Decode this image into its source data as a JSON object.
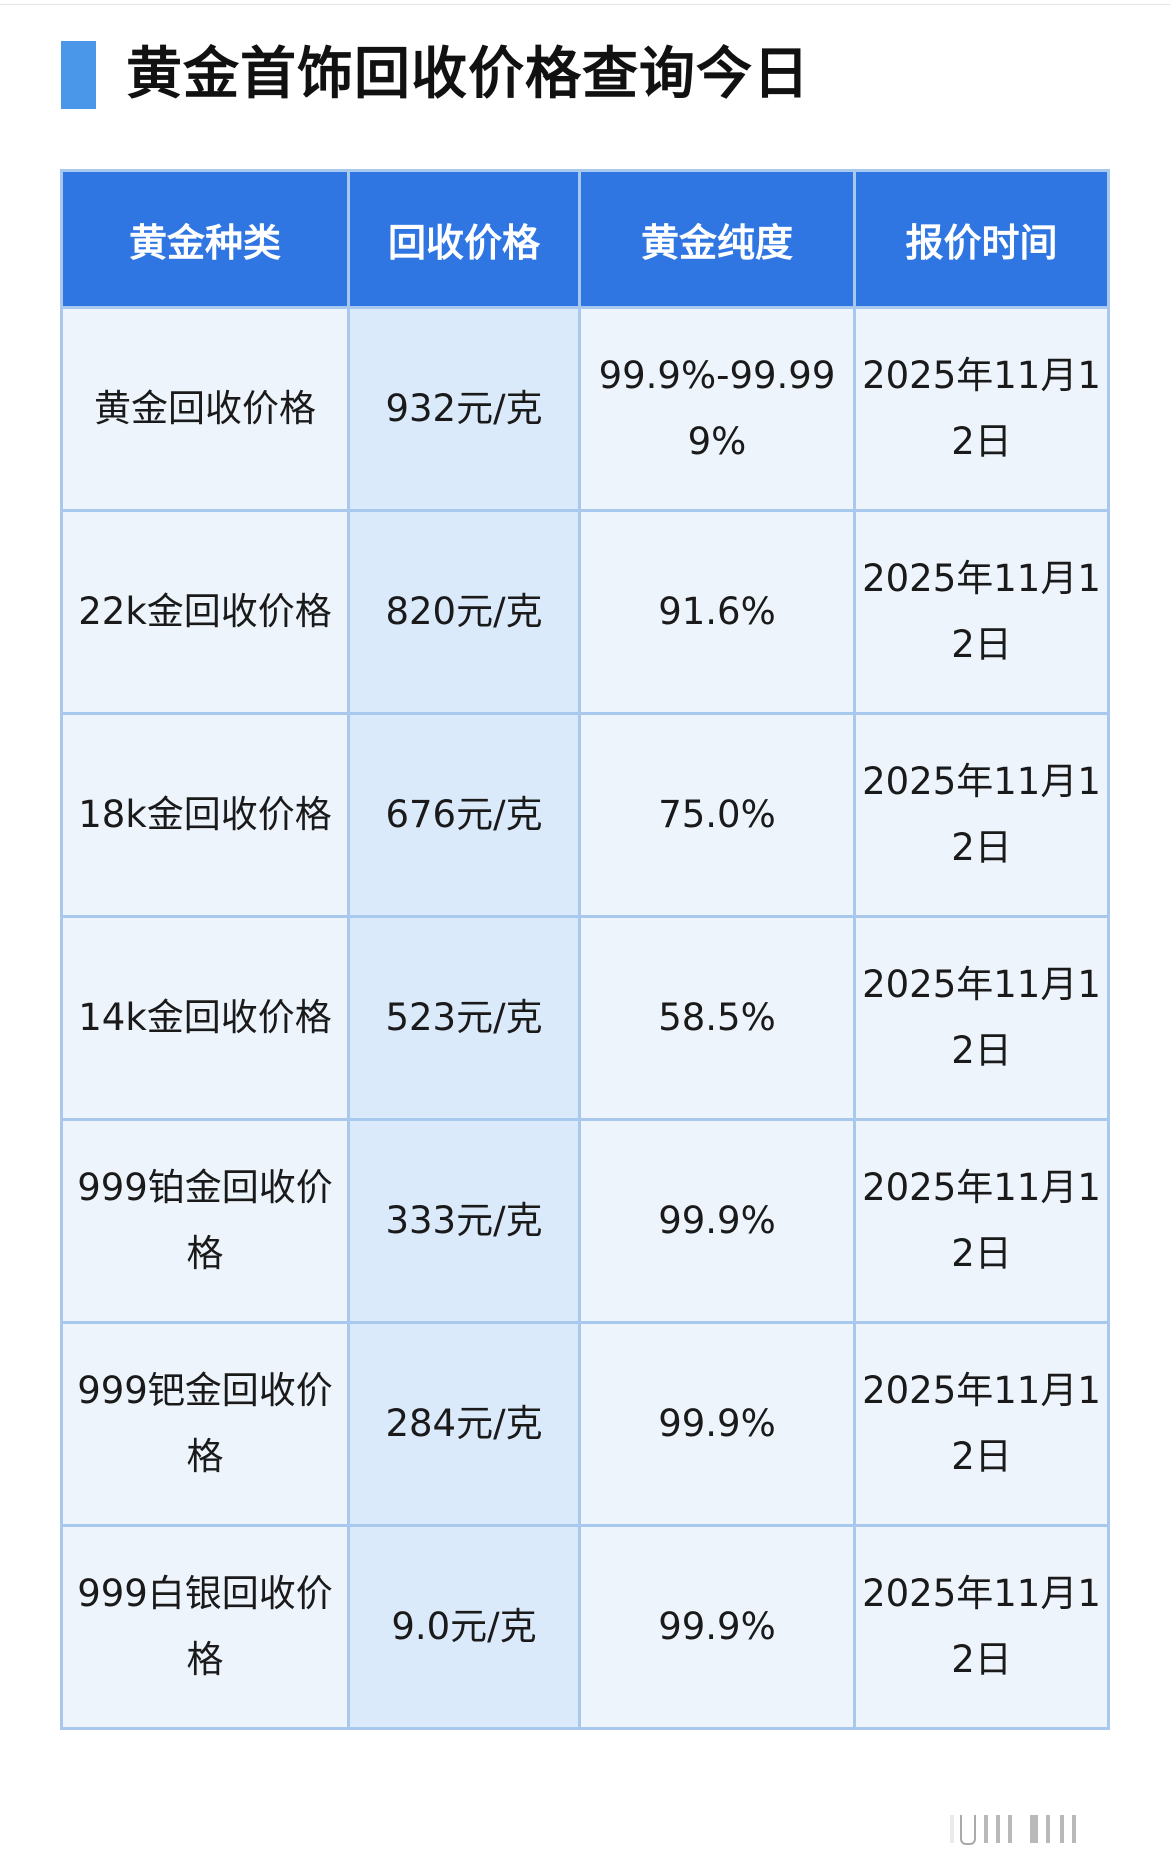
{
  "title": "黄金首饰回收价格查询今日",
  "colors": {
    "accent": "#4a97ea",
    "header_bg": "#2f76e3",
    "row_bg": "#edf4fc",
    "price_col_bg": "#dbeafb",
    "border": "#a9c8ee"
  },
  "table": {
    "headers": [
      "黄金种类",
      "回收价格",
      "黄金纯度",
      "报价时间"
    ],
    "rows": [
      {
        "type": "黄金回收价格",
        "price": "932元/克",
        "purity": "99.9%-99.999%",
        "date": "2025年11月12日"
      },
      {
        "type": "22k金回收价格",
        "price": "820元/克",
        "purity": "91.6%",
        "date": "2025年11月12日"
      },
      {
        "type": "18k金回收价格",
        "price": "676元/克",
        "purity": "75.0%",
        "date": "2025年11月12日"
      },
      {
        "type": "14k金回收价格",
        "price": "523元/克",
        "purity": "58.5%",
        "date": "2025年11月12日"
      },
      {
        "type": "999铂金回收价格",
        "price": "333元/克",
        "purity": "99.9%",
        "date": "2025年11月12日"
      },
      {
        "type": "999钯金回收价格",
        "price": "284元/克",
        "purity": "99.9%",
        "date": "2025年11月12日"
      },
      {
        "type": "999白银回收价格",
        "price": "9.0元/克",
        "purity": "99.9%",
        "date": "2025年11月12日"
      }
    ]
  }
}
